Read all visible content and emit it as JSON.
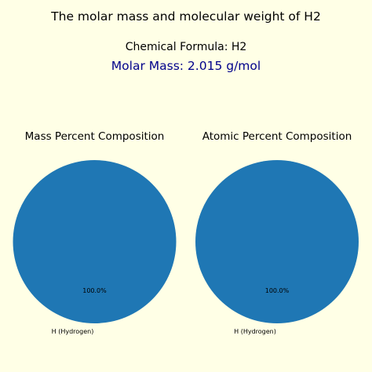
{
  "title": "The molar mass and molecular weight of H2",
  "formula_text": "Chemical Formula: H2",
  "molar_mass_text": "Molar Mass: 2.015 g/mol",
  "colors": {
    "background": "#ffffe6",
    "slice_hydrogen": "#1f77b4",
    "molar_mass_text": "#00008b"
  },
  "chart_data": [
    {
      "type": "pie",
      "title": "Mass Percent Composition",
      "slices": [
        {
          "label": "H (Hydrogen)",
          "value": 100.0,
          "pct_label": "100.0%"
        }
      ]
    },
    {
      "type": "pie",
      "title": "Atomic Percent Composition",
      "slices": [
        {
          "label": "H (Hydrogen)",
          "value": 100.0,
          "pct_label": "100.0%"
        }
      ]
    }
  ]
}
